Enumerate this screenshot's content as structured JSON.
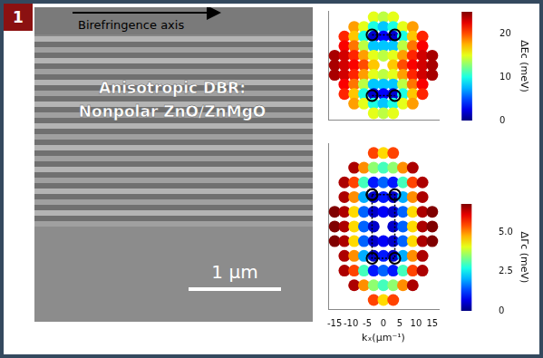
{
  "panel_label": "1",
  "image": {
    "arrow_label": "Birefringence axis",
    "title_lines": [
      "Anisotropic DBR:",
      "Nonpolar ZnO/ZnMgO"
    ],
    "scale_bar": "1 μm"
  },
  "chart_data": [
    {
      "type": "heatmap",
      "x": [
        -15,
        -12,
        -9,
        -6,
        -3,
        0,
        3,
        6,
        9,
        12,
        15
      ],
      "y": [
        15,
        12,
        9,
        6,
        3,
        0,
        -3,
        -6,
        -9,
        -12,
        -15
      ],
      "cells": [
        [
          null,
          null,
          null,
          null,
          15,
          14,
          15,
          null,
          null,
          null,
          null
        ],
        [
          null,
          null,
          18,
          15,
          10,
          8,
          10,
          15,
          18,
          null,
          null
        ],
        [
          null,
          21,
          17,
          10,
          2,
          3,
          2,
          10,
          17,
          21,
          null
        ],
        [
          null,
          22,
          19,
          14,
          8,
          8,
          8,
          14,
          19,
          22,
          null
        ],
        [
          24,
          23,
          21,
          18,
          15,
          14,
          15,
          18,
          21,
          23,
          24
        ],
        [
          24,
          23,
          22,
          20,
          17,
          null,
          17,
          20,
          22,
          23,
          24
        ],
        [
          24,
          23,
          21,
          18,
          15,
          14,
          15,
          18,
          21,
          23,
          24
        ],
        [
          null,
          22,
          19,
          14,
          8,
          8,
          8,
          14,
          19,
          22,
          null
        ],
        [
          null,
          21,
          17,
          10,
          2,
          3,
          2,
          10,
          17,
          21,
          null
        ],
        [
          null,
          null,
          18,
          15,
          10,
          8,
          10,
          15,
          18,
          null,
          null
        ],
        [
          null,
          null,
          null,
          null,
          15,
          14,
          15,
          null,
          null,
          null,
          null
        ]
      ],
      "xlim": [
        -17,
        17
      ],
      "ylim": [
        -17,
        17
      ],
      "tick_labels": false,
      "grid": false,
      "colorbar": {
        "label": "ΔEc (meV)",
        "lim": [
          0,
          25
        ],
        "ticks": [
          0,
          10,
          20
        ]
      },
      "markers": {
        "x": [
          -3.5,
          3.5,
          null,
          -3.5,
          3.5
        ],
        "y": [
          9.5,
          9.5,
          null,
          -9.5,
          -9.5
        ],
        "marker": "circle",
        "line_style": "dotted",
        "color": "#000000"
      }
    },
    {
      "type": "heatmap",
      "x": [
        -15,
        -12,
        -9,
        -6,
        -3,
        0,
        3,
        6,
        9,
        12,
        15
      ],
      "y": [
        15,
        12,
        9,
        6,
        3,
        0,
        -3,
        -6,
        -9,
        -12,
        -15
      ],
      "cells": [
        [
          null,
          null,
          null,
          null,
          5.5,
          4.5,
          5.5,
          null,
          null,
          null,
          null
        ],
        [
          null,
          null,
          6.5,
          5,
          3.5,
          3,
          3.5,
          5,
          6.5,
          null,
          null
        ],
        [
          null,
          6.5,
          5.5,
          3,
          1,
          1.5,
          1,
          3,
          5.5,
          6.5,
          null
        ],
        [
          null,
          6.5,
          5,
          2,
          0.5,
          1,
          0.5,
          2,
          5,
          6.5,
          null
        ],
        [
          6.8,
          6.5,
          4.5,
          1.5,
          0.5,
          0.8,
          0.5,
          1.5,
          4.5,
          6.5,
          6.8
        ],
        [
          6.8,
          6.5,
          4.5,
          1.5,
          0.5,
          null,
          0.5,
          1.5,
          4.5,
          6.5,
          6.8
        ],
        [
          6.8,
          6.5,
          4.5,
          1.5,
          0.5,
          0.8,
          0.5,
          1.5,
          4.5,
          6.5,
          6.8
        ],
        [
          null,
          6.5,
          5,
          2,
          0.5,
          1,
          0.5,
          2,
          5,
          6.5,
          null
        ],
        [
          null,
          6.5,
          5.5,
          3,
          1,
          1.5,
          1,
          3,
          5.5,
          6.5,
          null
        ],
        [
          null,
          null,
          6.5,
          5,
          3.5,
          3,
          3.5,
          5,
          6.5,
          null,
          null
        ],
        [
          null,
          null,
          null,
          null,
          5.5,
          4.5,
          5.5,
          null,
          null,
          null,
          null
        ]
      ],
      "xlim": [
        -17,
        17
      ],
      "ylim": [
        -17,
        17
      ],
      "xticks": [
        -15,
        -10,
        -5,
        0,
        5,
        10,
        15
      ],
      "xlabel": "kₓ(μm⁻¹)",
      "tick_labels": "x",
      "grid": false,
      "colorbar": {
        "label": "ΔΓc (meV)",
        "lim": [
          0,
          6.8
        ],
        "ticks": [
          0,
          2.5,
          {
            "value": 5,
            "label": "5.0"
          }
        ]
      },
      "markers": {
        "x": [
          -3.5,
          3.5,
          3.5,
          -3.5,
          -3.5
        ],
        "y": [
          6.5,
          6.5,
          -6.5,
          -6.5,
          6.5
        ],
        "marker": "circle",
        "line_style": "dotted",
        "color": "#000000"
      }
    }
  ]
}
